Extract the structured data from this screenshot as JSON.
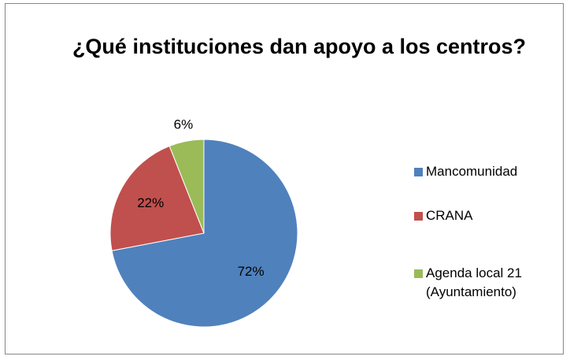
{
  "chart_data": {
    "type": "pie",
    "title": "¿Qué instituciones dan apoyo a los centros?",
    "categories": [
      "Mancomunidad",
      "CRANA",
      "Agenda local 21 (Ayuntamiento)"
    ],
    "values": [
      72,
      22,
      6
    ],
    "value_labels": [
      "72%",
      "22%",
      "6%"
    ],
    "colors": [
      "#4f81bd",
      "#c0504d",
      "#9bbb59"
    ],
    "legend": "right"
  }
}
